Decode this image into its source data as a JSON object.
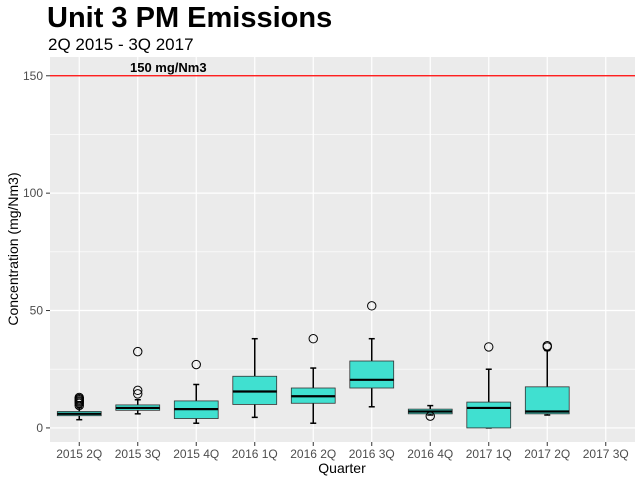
{
  "chart_data": {
    "type": "box",
    "title": "Unit 3 PM Emissions",
    "subtitle": "2Q 2015 - 3Q 2017",
    "xlabel": "Quarter",
    "ylabel": "Concentration (mg/Nm3)",
    "ylim": [
      -6,
      158
    ],
    "yticks": [
      0,
      50,
      100,
      150
    ],
    "grid": true,
    "background": "#ebebeb",
    "box_fill": "#40e0d0",
    "reference_line": {
      "value": 150,
      "label": "150 mg/Nm3",
      "color": "#ff0000"
    },
    "categories": [
      "2015 2Q",
      "2015 3Q",
      "2015 4Q",
      "2016 1Q",
      "2016 2Q",
      "2016 3Q",
      "2016 4Q",
      "2017 1Q",
      "2017 2Q",
      "2017 3Q"
    ],
    "boxes": [
      {
        "category": "2015 2Q",
        "min": 3.5,
        "q1": 5.2,
        "median": 6.0,
        "q3": 7.0,
        "max": 8.5,
        "outliers": [
          9.5,
          10.5,
          11.0,
          11.5,
          12.0,
          12.5,
          13.0
        ]
      },
      {
        "category": "2015 3Q",
        "min": 6.0,
        "q1": 7.5,
        "median": 8.5,
        "q3": 9.8,
        "max": 12.0,
        "outliers": [
          14.5,
          16.0,
          32.5
        ]
      },
      {
        "category": "2015 4Q",
        "min": 2.0,
        "q1": 4.0,
        "median": 8.0,
        "q3": 11.5,
        "max": 18.5,
        "outliers": [
          27.0
        ]
      },
      {
        "category": "2016 1Q",
        "min": 4.5,
        "q1": 10.0,
        "median": 15.5,
        "q3": 22.0,
        "max": 38.0,
        "outliers": []
      },
      {
        "category": "2016 2Q",
        "min": 2.0,
        "q1": 10.5,
        "median": 13.5,
        "q3": 17.0,
        "max": 25.5,
        "outliers": [
          38.0
        ]
      },
      {
        "category": "2016 3Q",
        "min": 9.0,
        "q1": 17.0,
        "median": 20.5,
        "q3": 28.5,
        "max": 38.0,
        "outliers": [
          52.0
        ]
      },
      {
        "category": "2016 4Q",
        "min": 5.5,
        "q1": 6.0,
        "median": 7.0,
        "q3": 8.0,
        "max": 9.5,
        "outliers": [
          5.0
        ]
      },
      {
        "category": "2017 1Q",
        "min": 0.0,
        "q1": 0.0,
        "median": 8.5,
        "q3": 11.0,
        "max": 25.0,
        "outliers": [
          34.5
        ]
      },
      {
        "category": "2017 2Q",
        "min": 5.5,
        "q1": 6.0,
        "median": 7.0,
        "q3": 17.5,
        "max": 33.0,
        "outliers": [
          34.5,
          35.0
        ]
      },
      {
        "category": "2017 3Q",
        "min": null,
        "q1": null,
        "median": null,
        "q3": null,
        "max": null,
        "outliers": []
      }
    ]
  }
}
